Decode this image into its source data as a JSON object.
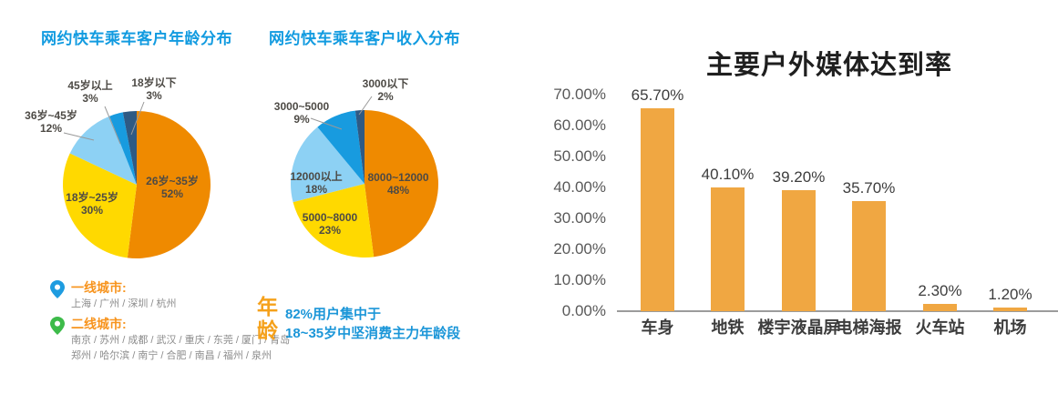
{
  "page": {
    "background": "#ffffff"
  },
  "colors": {
    "title_blue": "#129BE0",
    "pie_orange": "#EF8A00",
    "pie_yellow": "#FFD900",
    "pie_light_blue": "#8DD1F4",
    "pie_bright_blue": "#189BDF",
    "pie_navy": "#2E5A84",
    "bar_orange": "#F0A742",
    "accent_orange": "#F7941E",
    "note_blue": "#1B96D8",
    "pin_blue": "#1E9CE0",
    "pin_green": "#3DBB4A"
  },
  "chart_data": [
    {
      "type": "pie",
      "title": "网约快车乘车客户年龄分布",
      "slices": [
        {
          "label": "26岁~35岁",
          "pct": 52,
          "pct_label": "52%",
          "color": "#EF8A00"
        },
        {
          "label": "18岁~25岁",
          "pct": 30,
          "pct_label": "30%",
          "color": "#FFD900"
        },
        {
          "label": "36岁~45岁",
          "pct": 12,
          "pct_label": "12%",
          "color": "#8DD1F4"
        },
        {
          "label": "45岁以上",
          "pct": 3,
          "pct_label": "3%",
          "color": "#189BDF"
        },
        {
          "label": "18岁以下",
          "pct": 3,
          "pct_label": "3%",
          "color": "#2E5A84"
        }
      ]
    },
    {
      "type": "pie",
      "title": "网约快车乘车客户收入分布",
      "slices": [
        {
          "label": "8000~12000",
          "pct": 48,
          "pct_label": "48%",
          "color": "#EF8A00"
        },
        {
          "label": "5000~8000",
          "pct": 23,
          "pct_label": "23%",
          "color": "#FFD900"
        },
        {
          "label": "12000以上",
          "pct": 18,
          "pct_label": "18%",
          "color": "#8DD1F4"
        },
        {
          "label": "3000~5000",
          "pct": 9,
          "pct_label": "9%",
          "color": "#189BDF"
        },
        {
          "label": "3000以下",
          "pct": 2,
          "pct_label": "2%",
          "color": "#2E5A84"
        }
      ]
    },
    {
      "type": "bar",
      "title": "主要户外媒体达到率",
      "categories": [
        "车身",
        "地铁",
        "楼宇液晶屏",
        "电梯海报",
        "火车站",
        "机场"
      ],
      "values": [
        65.7,
        40.1,
        39.2,
        35.7,
        2.3,
        1.2
      ],
      "value_labels": [
        "65.70%",
        "40.10%",
        "39.20%",
        "35.70%",
        "2.30%",
        "1.20%"
      ],
      "y_ticks": [
        "70.00%",
        "60.00%",
        "50.00%",
        "40.00%",
        "30.00%",
        "20.00%",
        "10.00%",
        "0.00%"
      ],
      "ylim": [
        0,
        70
      ],
      "grid": false,
      "bar_color": "#F0A742"
    }
  ],
  "cities": {
    "tier1": {
      "label": "一线城市:",
      "list": "上海 / 广州 / 深圳 / 杭州"
    },
    "tier2": {
      "label": "二线城市:",
      "list_line1": "南京 / 苏州 / 成都 / 武汉 / 重庆 / 东莞 / 厦门 / 青岛",
      "list_line2": "郑州 / 哈尔滨 / 南宁 / 合肥 / 南昌 / 福州 / 泉州"
    }
  },
  "age_note": {
    "label": "年龄",
    "line1": "82%用户集中于",
    "line2": "18~35岁中坚消费主力年龄段"
  }
}
